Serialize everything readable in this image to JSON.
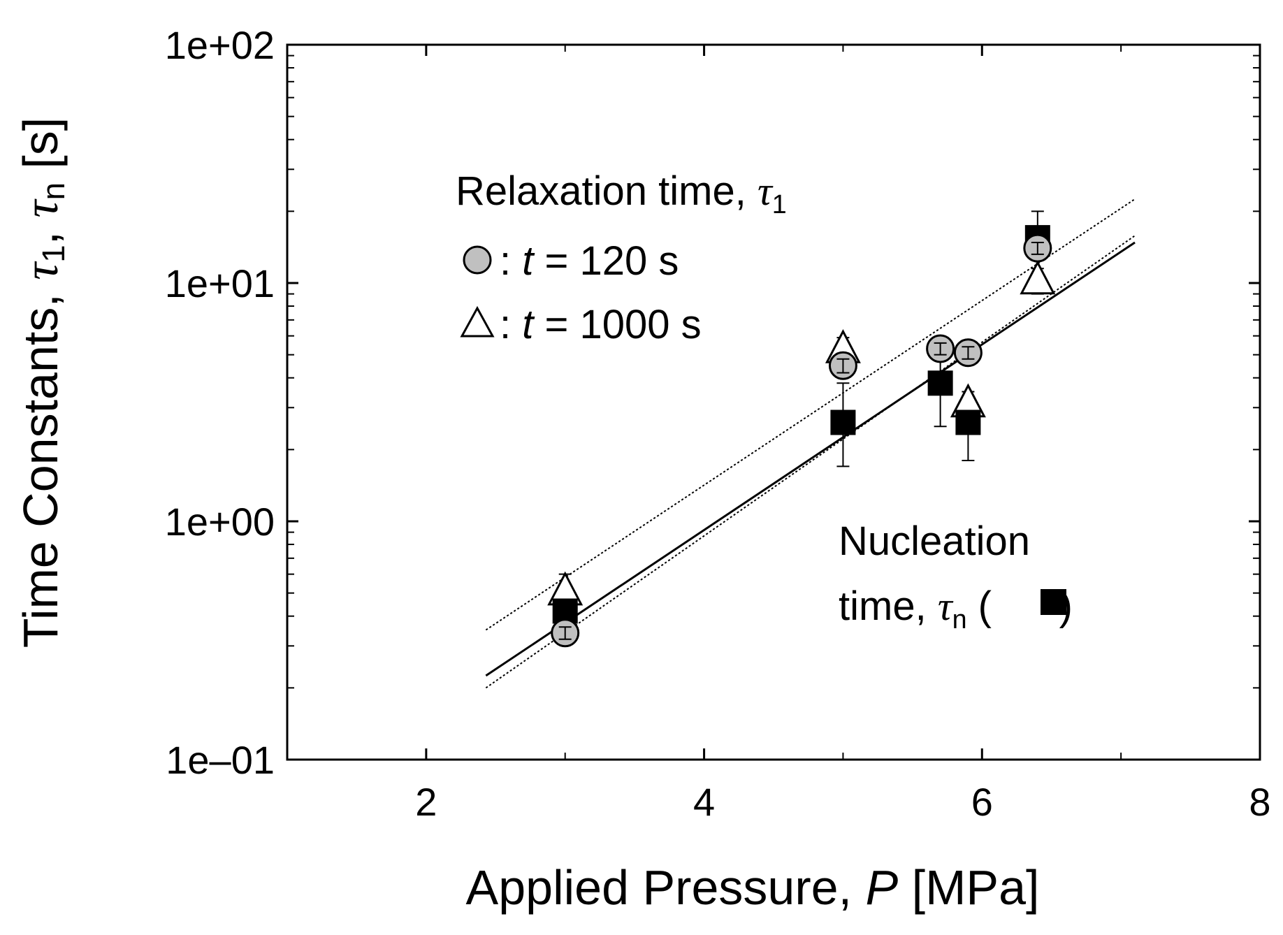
{
  "chart_data": {
    "type": "scatter",
    "x_axis": {
      "title_parts": [
        "Applied Pressure, ",
        "P",
        " [MPa]"
      ],
      "range": [
        1,
        8
      ],
      "ticks": [
        2,
        4,
        6,
        8
      ],
      "tick_labels": [
        "2",
        "4",
        "6",
        "8"
      ],
      "minor_ticks": [
        3,
        5,
        7
      ]
    },
    "y_axis": {
      "title_parts": [
        "Time Constants, ",
        "τ",
        "1",
        ", ",
        "τ",
        "n",
        "  [s]"
      ],
      "scale": "log",
      "range": [
        0.1,
        100
      ],
      "ticks": [
        0.1,
        1,
        10,
        100
      ],
      "tick_labels": [
        "1e–01",
        "1e+00",
        "1e+01",
        "1e+02"
      ]
    },
    "series": [
      {
        "name": "t = 120 s",
        "marker": "circle",
        "fill": "#c0c0c0",
        "points": [
          {
            "x": 3.0,
            "y": 0.34,
            "err_low": 0.32,
            "err_high": 0.36
          },
          {
            "x": 5.0,
            "y": 4.5,
            "err_low": 4.2,
            "err_high": 4.8
          },
          {
            "x": 5.7,
            "y": 5.3,
            "err_low": 5.0,
            "err_high": 5.6
          },
          {
            "x": 5.9,
            "y": 5.1,
            "err_low": 4.8,
            "err_high": 5.4
          },
          {
            "x": 6.4,
            "y": 14.0,
            "err_low": 13.2,
            "err_high": 14.8
          }
        ]
      },
      {
        "name": "t = 1000 s",
        "marker": "triangle",
        "fill": "#ffffff",
        "points": [
          {
            "x": 3.0,
            "y": 0.52,
            "err_low": 0.48,
            "err_high": 0.6
          },
          {
            "x": 5.0,
            "y": 5.4,
            "err_low": 4.9,
            "err_high": 5.9
          },
          {
            "x": 5.9,
            "y": 3.2,
            "err_low": 2.9,
            "err_high": 3.5
          },
          {
            "x": 6.4,
            "y": 10.5,
            "err_low": 9.0,
            "err_high": 11.5
          }
        ]
      },
      {
        "name": "Nucleation time, τn",
        "marker": "square",
        "fill": "#000000",
        "points": [
          {
            "x": 3.0,
            "y": 0.42,
            "err_low": 0.39,
            "err_high": 0.45
          },
          {
            "x": 5.0,
            "y": 2.6,
            "err_low": 1.7,
            "err_high": 3.8
          },
          {
            "x": 5.7,
            "y": 3.8,
            "err_low": 2.5,
            "err_high": 5.2
          },
          {
            "x": 5.9,
            "y": 2.6,
            "err_low": 1.8,
            "err_high": 3.3
          },
          {
            "x": 6.4,
            "y": 15.5,
            "err_low": 11.0,
            "err_high": 20.0
          }
        ]
      }
    ],
    "fit_lines": [
      {
        "name": "nucleation fit",
        "style": "solid",
        "x": [
          2.43,
          7.1
        ],
        "y": [
          0.225,
          14.8
        ]
      },
      {
        "name": "t = 120 s fit",
        "style": "dotted",
        "x": [
          2.43,
          7.1
        ],
        "y": [
          0.2,
          15.8
        ]
      },
      {
        "name": "t = 1000 s fit",
        "style": "dotted",
        "x": [
          2.43,
          7.1
        ],
        "y": [
          0.35,
          22.5
        ]
      }
    ],
    "legend": {
      "title_text": "Relaxation time, ",
      "title_symbol": "τ",
      "title_sub": "1",
      "items": [
        {
          "marker": "circle",
          "prefix": " : ",
          "var": "t",
          "suffix": " = 120 s"
        },
        {
          "marker": "triangle",
          "prefix": " : ",
          "var": "t",
          "suffix": " = 1000 s"
        }
      ],
      "placement": "upper-left"
    },
    "annotation": {
      "line1": "Nucleation",
      "line2_text": "time, ",
      "line2_symbol": "τ",
      "line2_sub": "n",
      "line2_paren_open": " (",
      "line2_paren_close": ")",
      "placement": "lower-right"
    }
  }
}
